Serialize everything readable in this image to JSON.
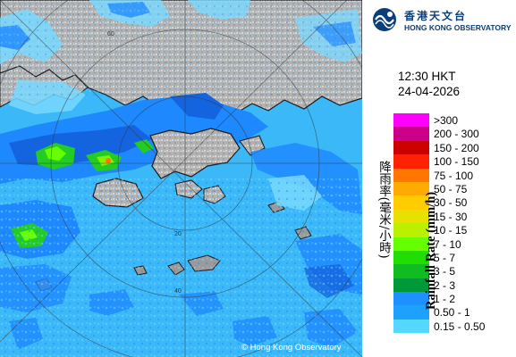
{
  "header": {
    "org_name_cn": "香港天文台",
    "org_name_en": "HONG KONG OBSERVATORY",
    "logo_icon": "hko-emblem-icon"
  },
  "timestamp": {
    "time": "12:30 HKT",
    "date": "24-04-2026"
  },
  "legend": {
    "title_cn": "降雨率(毫米/小時)",
    "title_en": "Rainfall Rate (mm/h)",
    "rows": [
      {
        "label": ">300",
        "color": "#ff00ff"
      },
      {
        "label": "200 - 300",
        "color": "#cc0088"
      },
      {
        "label": "150 - 200",
        "color": "#cc0000"
      },
      {
        "label": "100 - 150",
        "color": "#ff2200"
      },
      {
        "label": "75 - 100",
        "color": "#ff7700"
      },
      {
        "label": "50 - 75",
        "color": "#ffaa00"
      },
      {
        "label": "30 - 50",
        "color": "#ffcc00"
      },
      {
        "label": "15 - 30",
        "color": "#e8e000"
      },
      {
        "label": "10 - 15",
        "color": "#bbf000"
      },
      {
        "label": "7 - 10",
        "color": "#66ff00"
      },
      {
        "label": "5 - 7",
        "color": "#22dd00"
      },
      {
        "label": "3 - 5",
        "color": "#11bb22"
      },
      {
        "label": "2 - 3",
        "color": "#00993a"
      },
      {
        "label": "1 - 2",
        "color": "#1e90ff"
      },
      {
        "label": "0.50 - 1",
        "color": "#1ea0ff"
      },
      {
        "label": "0.15 - 0.50",
        "color": "#55d8ff"
      }
    ]
  },
  "map": {
    "copyright": "© Hong Kong Observatory",
    "range_ring_labels": [
      "20",
      "40",
      "60"
    ],
    "colors": {
      "sea": "#3ab8f8",
      "land": "#b8b8b8",
      "rain_light": "#78d8ff",
      "rain_moderate": "#1e88ff",
      "rain_heavy": "#22cc22"
    }
  }
}
